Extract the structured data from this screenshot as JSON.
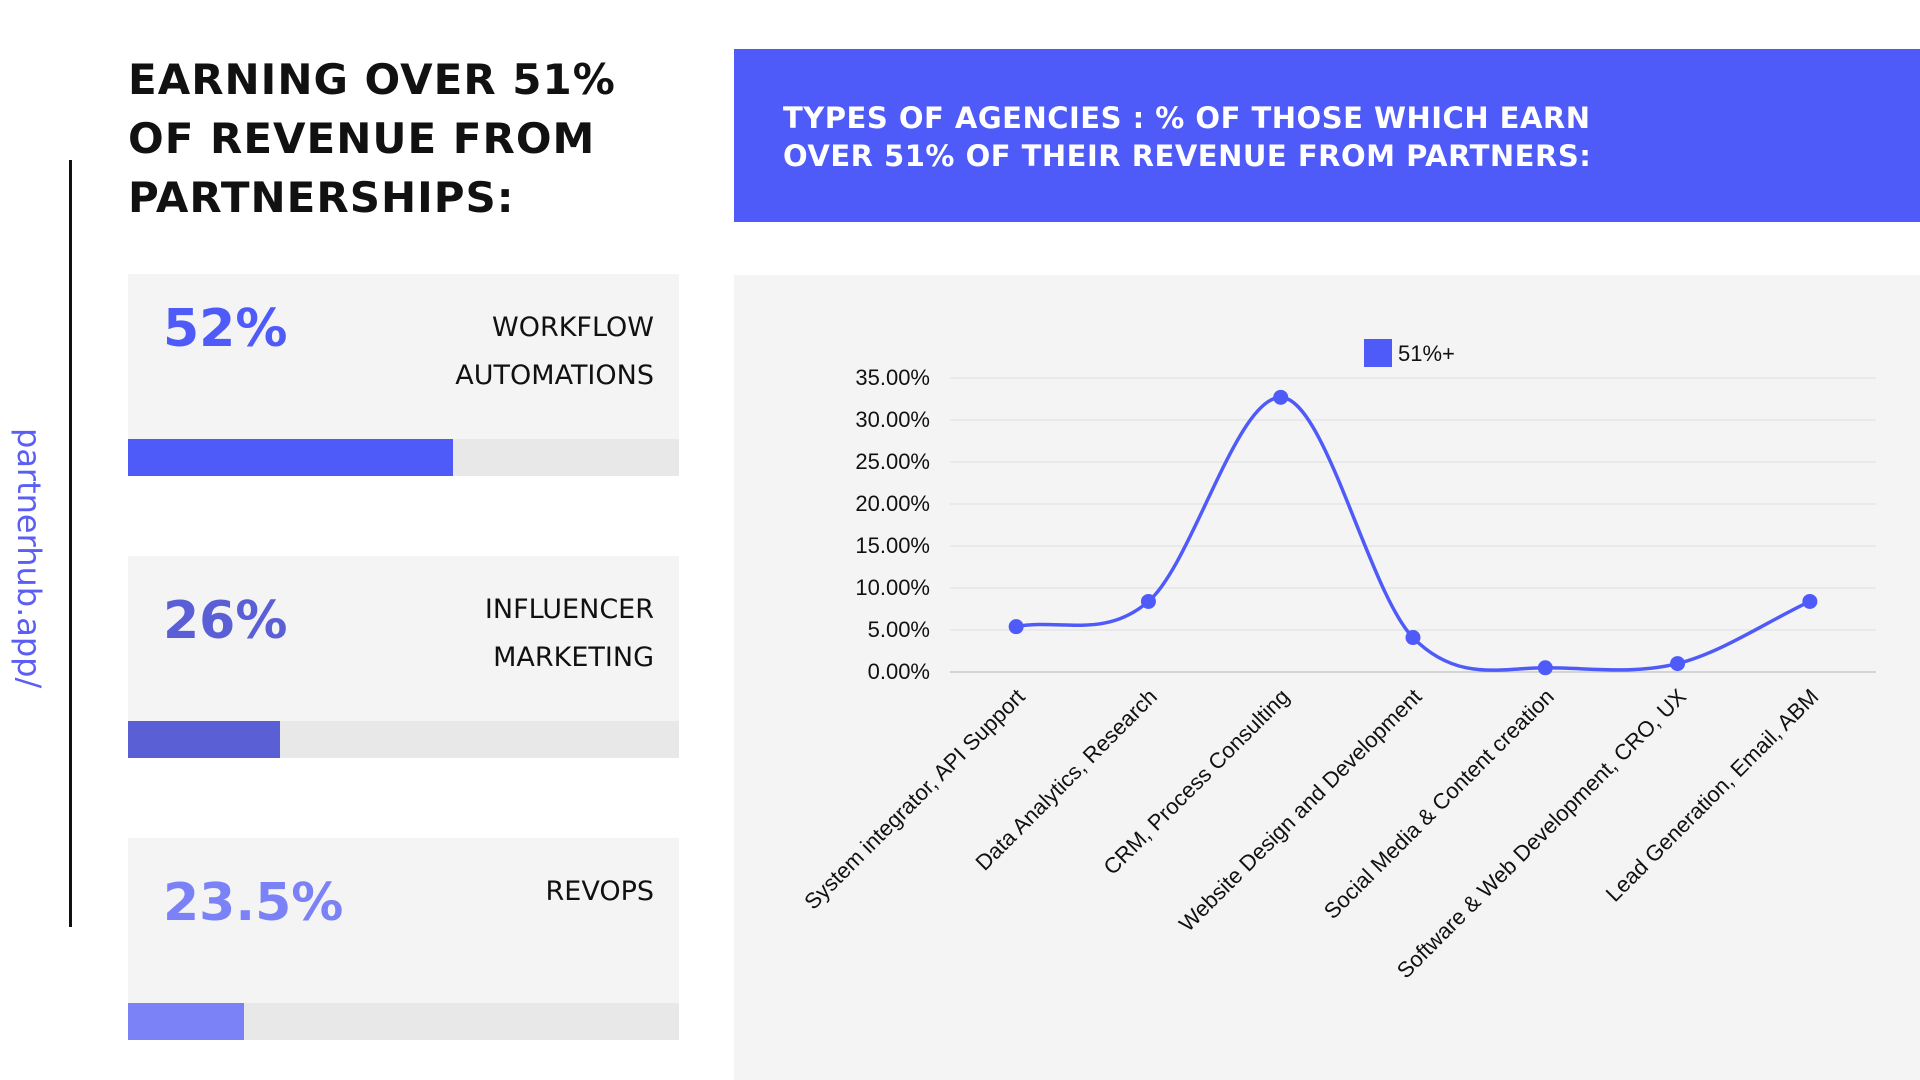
{
  "side_text": "partnerhub.app/",
  "main_title": "EARNING OVER 51% OF REVENUE FROM PARTNERSHIPS:",
  "stats": [
    {
      "value": "52%",
      "label": "WORKFLOW AUTOMATIONS",
      "fill_fraction": 0.59,
      "color": "#4f5bf9"
    },
    {
      "value": "26%",
      "label": "INFLUENCER MARKETING",
      "fill_fraction": 0.275,
      "color": "#5a5fd6"
    },
    {
      "value": "23.5%",
      "label": "REVOPS",
      "fill_fraction": 0.21,
      "color": "#7b82f7"
    }
  ],
  "banner_text": "TYPES OF AGENCIES : % OF THOSE WHICH EARN OVER 51% OF THEIR REVENUE FROM PARTNERS:",
  "chart_data": {
    "type": "line",
    "categories": [
      "System integrator, API Support",
      "Data Analytics, Research",
      "CRM, Process Consulting",
      "Website Design and Development",
      "Social Media & Content creation",
      "Software & Web Development, CRO, UX",
      "Lead Generation, Email, ABM"
    ],
    "series": [
      {
        "name": "51%+",
        "values": [
          5.4,
          8.4,
          32.7,
          4.1,
          0.5,
          1.0,
          8.4
        ],
        "color": "#4f5bf9"
      }
    ],
    "ylim": [
      0,
      35
    ],
    "yticks": [
      "0.00%",
      "5.00%",
      "10.00%",
      "15.00%",
      "20.00%",
      "25.00%",
      "30.00%",
      "35.00%"
    ],
    "grid": true,
    "legend": "top",
    "smooth": true
  }
}
